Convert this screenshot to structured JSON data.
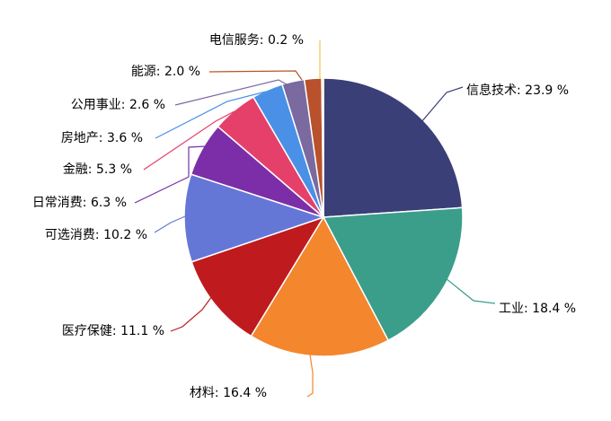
{
  "chart_data": {
    "type": "pie",
    "title": "",
    "legend": "none",
    "slices": [
      {
        "name": "信息技术",
        "value": 23.9,
        "label": "信息技术: 23.9 %",
        "color": "#3b3f78",
        "line_color": "#3b3f78"
      },
      {
        "name": "工业",
        "value": 18.4,
        "label": "工业: 18.4 %",
        "color": "#3a9e8a",
        "line_color": "#3a9e8a"
      },
      {
        "name": "材料",
        "value": 16.4,
        "label": "材料: 16.4 %",
        "color": "#f4862d",
        "line_color": "#f4862d"
      },
      {
        "name": "医疗保健",
        "value": 11.1,
        "label": "医疗保健: 11.1 %",
        "color": "#bf1a1e",
        "line_color": "#bf1a1e"
      },
      {
        "name": "可选消费",
        "value": 10.2,
        "label": "可选消费: 10.2 %",
        "color": "#6577d6",
        "line_color": "#6577d6"
      },
      {
        "name": "日常消费",
        "value": 6.3,
        "label": "日常消费: 6.3 %",
        "color": "#7c2ea8",
        "line_color": "#7c2ea8"
      },
      {
        "name": "金融",
        "value": 5.3,
        "label": "金融: 5.3 %",
        "color": "#e5406a",
        "line_color": "#e5406a"
      },
      {
        "name": "房地产",
        "value": 3.6,
        "label": "房地产: 3.6 %",
        "color": "#4a90e6",
        "line_color": "#4a90e6"
      },
      {
        "name": "公用事业",
        "value": 2.6,
        "label": "公用事业: 2.6 %",
        "color": "#7a6aa0",
        "line_color": "#7a6aa0"
      },
      {
        "name": "能源",
        "value": 2.0,
        "label": "能源: 2.0 %",
        "color": "#b9522c",
        "line_color": "#b9522c"
      },
      {
        "name": "电信服务",
        "value": 0.2,
        "label": "电信服务: 0.2 %",
        "color": "#f2c84b",
        "line_color": "#f2c84b"
      }
    ]
  }
}
